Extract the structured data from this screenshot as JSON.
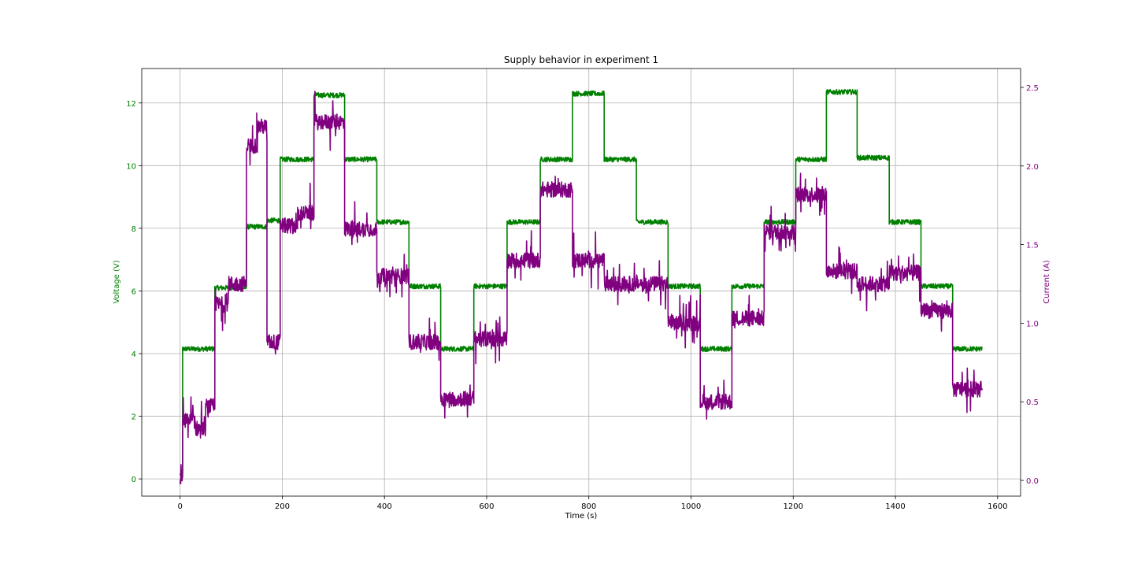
{
  "chart_data": {
    "type": "line",
    "title": "Supply behavior in experiment 1",
    "xlabel": "Time (s)",
    "ylabel_left": "Voltage (V)",
    "ylabel_right": "Current (A)",
    "xlim": [
      -75,
      1645
    ],
    "ylim_left": [
      -0.55,
      13.1
    ],
    "ylim_right": [
      -0.1,
      2.62
    ],
    "x_ticks": [
      0,
      200,
      400,
      600,
      800,
      1000,
      1200,
      1400,
      1600
    ],
    "y_ticks_left": [
      0,
      2,
      4,
      6,
      8,
      10,
      12
    ],
    "y_ticks_right": [
      0.0,
      0.5,
      1.0,
      1.5,
      2.0,
      2.5
    ],
    "grid": true,
    "colors": {
      "voltage": "#008000",
      "current": "#800080"
    },
    "series": [
      {
        "name": "Voltage",
        "axis": "left",
        "color": "#008000",
        "noise": 0.08,
        "steps": [
          {
            "x0": 0,
            "x1": 5,
            "v": 0.15
          },
          {
            "x0": 5,
            "x1": 68,
            "v": 4.15
          },
          {
            "x0": 68,
            "x1": 130,
            "v": 6.1
          },
          {
            "x0": 130,
            "x1": 170,
            "v": 8.05
          },
          {
            "x0": 170,
            "x1": 196,
            "v": 8.25
          },
          {
            "x0": 196,
            "x1": 262,
            "v": 10.2
          },
          {
            "x0": 262,
            "x1": 322,
            "v": 12.25
          },
          {
            "x0": 322,
            "x1": 385,
            "v": 10.2
          },
          {
            "x0": 385,
            "x1": 448,
            "v": 8.2
          },
          {
            "x0": 448,
            "x1": 510,
            "v": 6.15
          },
          {
            "x0": 510,
            "x1": 575,
            "v": 4.15
          },
          {
            "x0": 575,
            "x1": 640,
            "v": 6.15
          },
          {
            "x0": 640,
            "x1": 705,
            "v": 8.2
          },
          {
            "x0": 705,
            "x1": 768,
            "v": 10.2
          },
          {
            "x0": 768,
            "x1": 830,
            "v": 12.3
          },
          {
            "x0": 830,
            "x1": 893,
            "v": 10.2
          },
          {
            "x0": 893,
            "x1": 955,
            "v": 8.2
          },
          {
            "x0": 955,
            "x1": 1018,
            "v": 6.15
          },
          {
            "x0": 1018,
            "x1": 1080,
            "v": 4.15
          },
          {
            "x0": 1080,
            "x1": 1143,
            "v": 6.15
          },
          {
            "x0": 1143,
            "x1": 1205,
            "v": 8.2
          },
          {
            "x0": 1205,
            "x1": 1265,
            "v": 10.2
          },
          {
            "x0": 1265,
            "x1": 1325,
            "v": 12.35
          },
          {
            "x0": 1325,
            "x1": 1388,
            "v": 10.25
          },
          {
            "x0": 1388,
            "x1": 1450,
            "v": 8.2
          },
          {
            "x0": 1450,
            "x1": 1512,
            "v": 6.15
          },
          {
            "x0": 1512,
            "x1": 1570,
            "v": 4.15
          }
        ]
      },
      {
        "name": "Current",
        "axis": "right",
        "color": "#800080",
        "noise": 0.05,
        "steps": [
          {
            "x0": 0,
            "x1": 5,
            "v": 0.02
          },
          {
            "x0": 5,
            "x1": 30,
            "v": 0.38
          },
          {
            "x0": 30,
            "x1": 50,
            "v": 0.33
          },
          {
            "x0": 50,
            "x1": 68,
            "v": 0.47
          },
          {
            "x0": 68,
            "x1": 95,
            "v": 1.12
          },
          {
            "x0": 95,
            "x1": 130,
            "v": 1.25
          },
          {
            "x0": 130,
            "x1": 150,
            "v": 2.13
          },
          {
            "x0": 150,
            "x1": 170,
            "v": 2.25
          },
          {
            "x0": 170,
            "x1": 196,
            "v": 0.88
          },
          {
            "x0": 196,
            "x1": 230,
            "v": 1.62
          },
          {
            "x0": 230,
            "x1": 262,
            "v": 1.7
          },
          {
            "x0": 262,
            "x1": 322,
            "v": 2.28
          },
          {
            "x0": 322,
            "x1": 385,
            "v": 1.6
          },
          {
            "x0": 385,
            "x1": 448,
            "v": 1.3
          },
          {
            "x0": 448,
            "x1": 510,
            "v": 0.88
          },
          {
            "x0": 510,
            "x1": 575,
            "v": 0.52
          },
          {
            "x0": 575,
            "x1": 640,
            "v": 0.9
          },
          {
            "x0": 640,
            "x1": 705,
            "v": 1.4
          },
          {
            "x0": 705,
            "x1": 768,
            "v": 1.85
          },
          {
            "x0": 768,
            "x1": 830,
            "v": 1.4
          },
          {
            "x0": 830,
            "x1": 893,
            "v": 1.25
          },
          {
            "x0": 893,
            "x1": 955,
            "v": 1.25
          },
          {
            "x0": 955,
            "x1": 1018,
            "v": 1.0
          },
          {
            "x0": 1018,
            "x1": 1080,
            "v": 0.5
          },
          {
            "x0": 1080,
            "x1": 1143,
            "v": 1.03
          },
          {
            "x0": 1143,
            "x1": 1205,
            "v": 1.58
          },
          {
            "x0": 1205,
            "x1": 1265,
            "v": 1.82
          },
          {
            "x0": 1265,
            "x1": 1325,
            "v": 1.33
          },
          {
            "x0": 1325,
            "x1": 1388,
            "v": 1.25
          },
          {
            "x0": 1388,
            "x1": 1450,
            "v": 1.32
          },
          {
            "x0": 1450,
            "x1": 1512,
            "v": 1.08
          },
          {
            "x0": 1512,
            "x1": 1570,
            "v": 0.58
          }
        ]
      }
    ]
  }
}
